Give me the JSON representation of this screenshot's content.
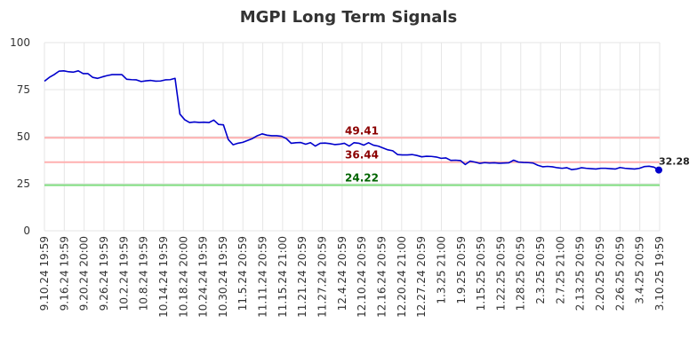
{
  "chart_data": {
    "type": "line",
    "title": "MGPI Long Term Signals",
    "xlabel": "",
    "ylabel": "",
    "ylim": [
      0,
      100
    ],
    "yticks": [
      0,
      25,
      50,
      75,
      100
    ],
    "grid": true,
    "xtick_labels": [
      "9.10.24 19:59",
      "9.16.24 19:59",
      "9.20.24 20:00",
      "9.26.24 19:59",
      "10.2.24 19:59",
      "10.8.24 19:59",
      "10.14.24 19:59",
      "10.18.24 20:00",
      "10.24.24 19:59",
      "10.30.24 19:59",
      "11.5.24 20:59",
      "11.11.24 20:59",
      "11.15.24 21:00",
      "11.21.24 20:59",
      "11.27.24 20:59",
      "12.4.24 20:59",
      "12.10.24 20:59",
      "12.16.24 20:59",
      "12.20.24 21:00",
      "12.27.24 20:59",
      "1.3.25 21:00",
      "1.9.25 20:59",
      "1.15.25 20:59",
      "1.22.25 20:59",
      "1.28.25 20:59",
      "2.3.25 20:59",
      "2.7.25 21:00",
      "2.13.25 20:59",
      "2.20.25 20:59",
      "2.26.25 20:59",
      "3.4.25 20:59",
      "3.10.25 19:59"
    ],
    "series": [
      {
        "color": "#0000cc",
        "values": [
          79.5,
          81.5,
          83.0,
          84.8,
          85.0,
          84.5,
          84.3,
          85.0,
          83.5,
          83.5,
          81.5,
          81.0,
          81.8,
          82.5,
          83.0,
          83.0,
          83.0,
          80.5,
          80.3,
          80.2,
          79.3,
          79.7,
          79.9,
          79.5,
          79.6,
          80.2,
          80.3,
          81.0,
          62.0,
          59.0,
          57.5,
          57.8,
          57.6,
          57.7,
          57.5,
          58.8,
          56.5,
          56.3,
          48.5,
          45.7,
          46.5,
          47.0,
          48.0,
          49.0,
          50.5,
          51.5,
          50.8,
          50.5,
          50.5,
          50.2,
          49.0,
          46.5,
          46.8,
          46.9,
          46.0,
          46.8,
          45.0,
          46.5,
          46.6,
          46.3,
          45.8,
          46.0,
          46.5,
          45.0,
          46.8,
          46.5,
          45.5,
          46.8,
          45.5,
          45.0,
          44.0,
          43.0,
          42.5,
          40.5,
          40.3,
          40.3,
          40.5,
          40.0,
          39.3,
          39.6,
          39.5,
          39.2,
          38.5,
          38.7,
          37.4,
          37.5,
          37.3,
          35.2,
          37.0,
          36.5,
          35.8,
          36.2,
          36.0,
          36.1,
          35.9,
          36.0,
          36.1,
          37.5,
          36.5,
          36.3,
          36.2,
          36.0,
          34.8,
          34.0,
          34.2,
          34.0,
          33.5,
          33.2,
          33.5,
          32.5,
          32.8,
          33.5,
          33.2,
          33.0,
          32.8,
          33.2,
          33.2,
          33.0,
          32.8,
          33.6,
          33.2,
          33.0,
          32.8,
          33.2,
          34.1,
          34.3,
          33.8,
          32.28
        ]
      }
    ],
    "reference_lines": [
      {
        "value": 49.41,
        "label": "49.41",
        "color": "#ffb0b0",
        "label_color": "#8b0000"
      },
      {
        "value": 36.44,
        "label": "36.44",
        "color": "#ffb0b0",
        "label_color": "#8b0000"
      },
      {
        "value": 24.22,
        "label": "24.22",
        "color": "#80dd80",
        "label_color": "#006400"
      }
    ],
    "last_value": {
      "value": 32.28,
      "label": "32.28"
    }
  }
}
